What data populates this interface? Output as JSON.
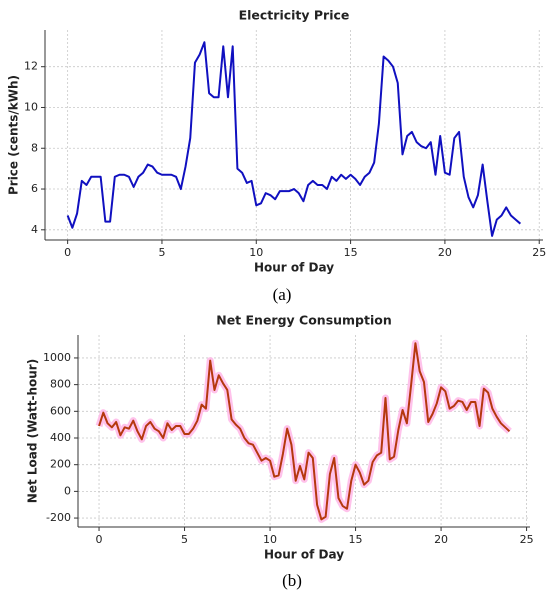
{
  "chart_data": [
    {
      "type": "line",
      "title": "Electricity Price",
      "xlabel": "Hour of Day",
      "ylabel": "Price (cents/kWh)",
      "x": [
        0,
        0.25,
        0.5,
        0.75,
        1,
        1.25,
        1.5,
        1.75,
        2,
        2.25,
        2.5,
        2.75,
        3,
        3.25,
        3.5,
        3.75,
        4,
        4.25,
        4.5,
        4.75,
        5,
        5.25,
        5.5,
        5.75,
        6,
        6.25,
        6.5,
        6.75,
        7,
        7.25,
        7.5,
        7.75,
        8,
        8.25,
        8.5,
        8.75,
        9,
        9.25,
        9.5,
        9.75,
        10,
        10.25,
        10.5,
        10.75,
        11,
        11.25,
        11.5,
        11.75,
        12,
        12.25,
        12.5,
        12.75,
        13,
        13.25,
        13.5,
        13.75,
        14,
        14.25,
        14.5,
        14.75,
        15,
        15.25,
        15.5,
        15.75,
        16,
        16.25,
        16.5,
        16.75,
        17,
        17.25,
        17.5,
        17.75,
        18,
        18.25,
        18.5,
        18.75,
        19,
        19.25,
        19.5,
        19.75,
        20,
        20.25,
        20.5,
        20.75,
        21,
        21.25,
        21.5,
        21.75,
        22,
        22.25,
        22.5,
        22.75,
        23,
        23.25,
        23.5,
        23.75,
        24
      ],
      "values": [
        4.7,
        4.1,
        4.8,
        6.4,
        6.2,
        6.6,
        6.6,
        6.6,
        4.4,
        4.4,
        6.6,
        6.7,
        6.7,
        6.6,
        6.1,
        6.6,
        6.8,
        7.2,
        7.1,
        6.8,
        6.7,
        6.7,
        6.7,
        6.6,
        6.0,
        7.1,
        8.5,
        12.2,
        12.6,
        13.2,
        10.7,
        10.5,
        10.5,
        13.0,
        10.5,
        13.0,
        7.0,
        6.8,
        6.3,
        6.4,
        5.2,
        5.3,
        5.8,
        5.7,
        5.5,
        5.9,
        5.9,
        5.9,
        6.0,
        5.8,
        5.4,
        6.2,
        6.4,
        6.2,
        6.2,
        6.0,
        6.6,
        6.4,
        6.7,
        6.5,
        6.7,
        6.5,
        6.2,
        6.6,
        6.8,
        7.3,
        9.2,
        12.5,
        12.3,
        12.0,
        11.2,
        7.7,
        8.6,
        8.8,
        8.3,
        8.1,
        8.0,
        8.3,
        6.7,
        8.6,
        6.8,
        6.7,
        8.5,
        8.8,
        6.6,
        5.6,
        5.1,
        5.7,
        7.2,
        5.4,
        3.7,
        4.5,
        4.7,
        5.1,
        4.7,
        4.5,
        4.3
      ],
      "color": "#1010c0",
      "xlim": [
        -1.2,
        25.2
      ],
      "xticks": [
        0,
        5,
        10,
        15,
        20,
        25
      ],
      "ylim": [
        3.5,
        13.8
      ],
      "yticks": [
        4,
        6,
        8,
        10,
        12
      ],
      "grid": true
    },
    {
      "type": "line",
      "title": "Net Energy Consumption",
      "xlabel": "Hour of Day",
      "ylabel": "Net Load (Watt-hour)",
      "x": [
        0,
        0.25,
        0.5,
        0.75,
        1,
        1.25,
        1.5,
        1.75,
        2,
        2.25,
        2.5,
        2.75,
        3,
        3.25,
        3.5,
        3.75,
        4,
        4.25,
        4.5,
        4.75,
        5,
        5.25,
        5.5,
        5.75,
        6,
        6.25,
        6.5,
        6.75,
        7,
        7.25,
        7.5,
        7.75,
        8,
        8.25,
        8.5,
        8.75,
        9,
        9.25,
        9.5,
        9.75,
        10,
        10.25,
        10.5,
        10.75,
        11,
        11.25,
        11.5,
        11.75,
        12,
        12.25,
        12.5,
        12.75,
        13,
        13.25,
        13.5,
        13.75,
        14,
        14.25,
        14.5,
        14.75,
        15,
        15.25,
        15.5,
        15.75,
        16,
        16.25,
        16.5,
        16.75,
        17,
        17.25,
        17.5,
        17.75,
        18,
        18.25,
        18.5,
        18.75,
        19,
        19.25,
        19.5,
        19.75,
        20,
        20.25,
        20.5,
        20.75,
        21,
        21.25,
        21.5,
        21.75,
        22,
        22.25,
        22.5,
        22.75,
        23,
        23.25,
        23.5,
        23.75,
        24
      ],
      "values": [
        490,
        590,
        510,
        480,
        520,
        420,
        480,
        470,
        530,
        450,
        390,
        490,
        520,
        470,
        450,
        400,
        510,
        460,
        490,
        490,
        430,
        430,
        470,
        530,
        650,
        620,
        980,
        760,
        870,
        810,
        760,
        540,
        500,
        470,
        400,
        360,
        350,
        290,
        230,
        250,
        230,
        110,
        120,
        280,
        470,
        350,
        80,
        190,
        90,
        290,
        250,
        -100,
        -210,
        -190,
        130,
        250,
        -50,
        -110,
        -130,
        80,
        200,
        140,
        50,
        80,
        220,
        270,
        290,
        700,
        240,
        260,
        460,
        610,
        510,
        800,
        1110,
        900,
        820,
        520,
        580,
        660,
        780,
        750,
        620,
        640,
        680,
        670,
        610,
        670,
        670,
        490,
        770,
        740,
        620,
        560,
        510,
        480,
        450
      ],
      "color": "#b5380e",
      "glow_color": "#ffb3e6",
      "xlim": [
        -1.23,
        25.2
      ],
      "xticks": [
        0,
        5,
        10,
        15,
        20,
        25
      ],
      "ylim": [
        -267,
        1172
      ],
      "yticks": [
        -200,
        0,
        200,
        400,
        600,
        800,
        1000
      ],
      "grid": true
    }
  ],
  "captions": [
    "(a)",
    "(b)"
  ]
}
